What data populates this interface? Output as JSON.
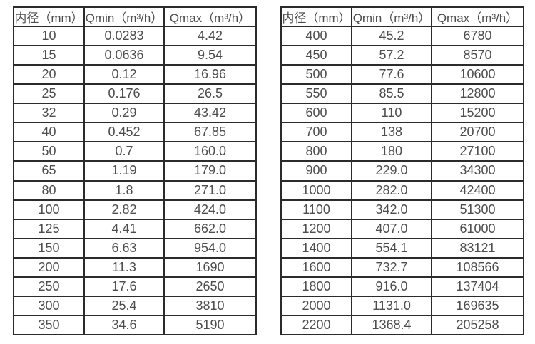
{
  "page": {
    "background": "#ffffff",
    "border_color": "#2b2b2b",
    "text_color": "#4d4d4d"
  },
  "table_left": {
    "name": "small-diameter-flow-spec",
    "headers": [
      "内径（mm）",
      "Qmin（m³/h）",
      "Qmax（m³/h）"
    ],
    "rows": [
      [
        "10",
        "0.0283",
        "4.42"
      ],
      [
        "15",
        "0.0636",
        "9.54"
      ],
      [
        "20",
        "0.12",
        "16.96"
      ],
      [
        "25",
        "0.176",
        "26.5"
      ],
      [
        "32",
        "0.29",
        "43.42"
      ],
      [
        "40",
        "0.452",
        "67.85"
      ],
      [
        "50",
        "0.7",
        "160.0"
      ],
      [
        "65",
        "1.19",
        "179.0"
      ],
      [
        "80",
        "1.8",
        "271.0"
      ],
      [
        "100",
        "2.82",
        "424.0"
      ],
      [
        "125",
        "4.41",
        "662.0"
      ],
      [
        "150",
        "6.63",
        "954.0"
      ],
      [
        "200",
        "11.3",
        "1690"
      ],
      [
        "250",
        "17.6",
        "2650"
      ],
      [
        "300",
        "25.4",
        "3810"
      ],
      [
        "350",
        "34.6",
        "5190"
      ]
    ]
  },
  "table_right": {
    "name": "large-diameter-flow-spec",
    "headers": [
      "内径（mm）",
      "Qmin（m³/h）",
      "Qmax（m³/h）"
    ],
    "rows": [
      [
        "400",
        "45.2",
        "6780"
      ],
      [
        "450",
        "57.2",
        "8570"
      ],
      [
        "500",
        "77.6",
        "10600"
      ],
      [
        "550",
        "85.5",
        "12800"
      ],
      [
        "600",
        "110",
        "15200"
      ],
      [
        "700",
        "138",
        "20700"
      ],
      [
        "800",
        "180",
        "27100"
      ],
      [
        "900",
        "229.0",
        "34300"
      ],
      [
        "1000",
        "282.0",
        "42400"
      ],
      [
        "1100",
        "342.0",
        "51300"
      ],
      [
        "1200",
        "407.0",
        "61000"
      ],
      [
        "1400",
        "554.1",
        "83121"
      ],
      [
        "1600",
        "732.7",
        "108566"
      ],
      [
        "1800",
        "916.0",
        "137404"
      ],
      [
        "2000",
        "1131.0",
        "169635"
      ],
      [
        "2200",
        "1368.4",
        "205258"
      ]
    ]
  }
}
